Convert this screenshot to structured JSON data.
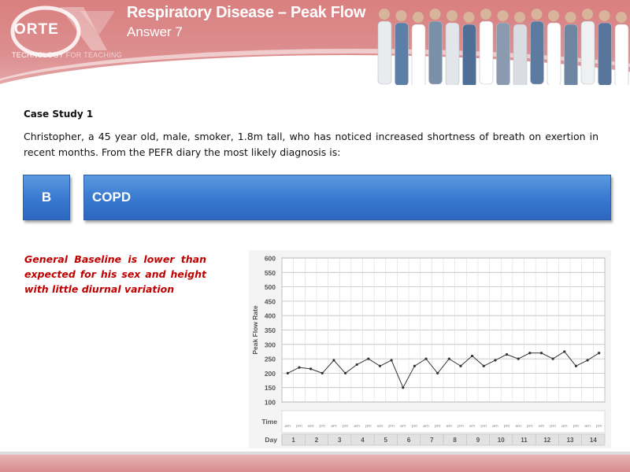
{
  "header": {
    "logo_text": "ORTE",
    "logo_tag_a": "TECHNOLOGY ",
    "logo_tag_b": "FOR TEACHING",
    "title": "Respiratory Disease – Peak Flow",
    "subtitle": "Answer 7"
  },
  "case": {
    "title": "Case Study 1",
    "text": "Christopher, a 45 year old, male, smoker, 1.8m tall, who has noticed increased shortness of breath on exertion in recent months. From the PEFR diary the most likely diagnosis is:"
  },
  "answer": {
    "letter": "B",
    "text": "COPD"
  },
  "explanation": "General Baseline is lower than expected for his sex and height with little diurnal variation",
  "chart_data": {
    "type": "line",
    "title": "",
    "ylabel": "Peak Flow Rate",
    "xlabel": "",
    "ylim": [
      0,
      600
    ],
    "yticks": [
      100,
      150,
      200,
      250,
      300,
      350,
      400,
      450,
      500,
      550,
      600
    ],
    "row_labels": {
      "time": "Time",
      "day": "Day"
    },
    "time_labels": [
      "am",
      "pm",
      "am",
      "pm",
      "am",
      "pm",
      "am",
      "pm",
      "am",
      "pm",
      "am",
      "pm",
      "am",
      "pm",
      "am",
      "pm",
      "am",
      "pm",
      "am",
      "pm",
      "am",
      "pm",
      "am",
      "pm",
      "am",
      "pm",
      "am",
      "pm"
    ],
    "days": [
      "1",
      "2",
      "3",
      "4",
      "5",
      "6",
      "7",
      "8",
      "9",
      "10",
      "11",
      "12",
      "13",
      "14"
    ],
    "series": [
      {
        "name": "",
        "values": [
          200,
          220,
          215,
          200,
          245,
          200,
          230,
          250,
          225,
          245,
          150,
          225,
          250,
          200,
          250,
          225,
          260,
          225,
          245,
          265,
          250,
          270,
          270,
          250,
          275,
          225,
          245,
          270
        ]
      }
    ],
    "grid": true,
    "colors": {
      "line": "#333333",
      "grid": "#bdbdbd",
      "marker": "#333333"
    }
  }
}
